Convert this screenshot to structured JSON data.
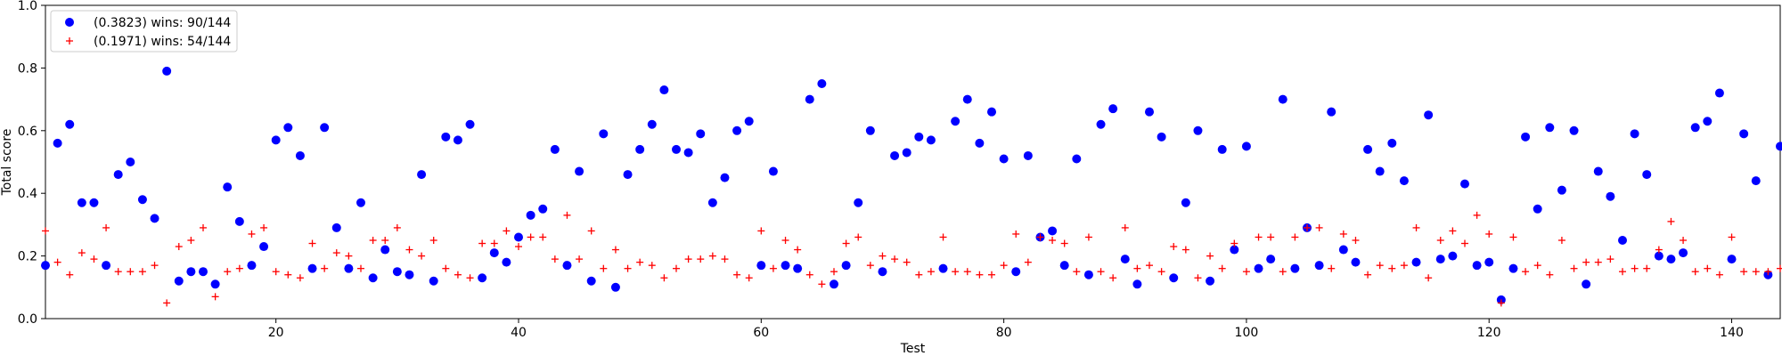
{
  "chart_data": {
    "type": "scatter",
    "xlabel": "Test",
    "ylabel": "Total score",
    "xlim": [
      1,
      144
    ],
    "ylim": [
      0.0,
      1.0
    ],
    "x_ticks": [
      20,
      40,
      60,
      80,
      100,
      120,
      140
    ],
    "y_ticks": [
      "0.0",
      "0.2",
      "0.4",
      "0.6",
      "0.8",
      "1.0"
    ],
    "grid": false,
    "legend_position": "top-left",
    "series": [
      {
        "name": "(0.3823) wins: 90/144",
        "marker": "circle",
        "color": "#0000ff",
        "x": [
          1,
          2,
          3,
          4,
          5,
          6,
          7,
          8,
          9,
          10,
          11,
          12,
          13,
          14,
          15,
          16,
          17,
          18,
          19,
          20,
          21,
          22,
          23,
          24,
          25,
          26,
          27,
          28,
          29,
          30,
          31,
          32,
          33,
          34,
          35,
          36,
          37,
          38,
          39,
          40,
          41,
          42,
          43,
          44,
          45,
          46,
          47,
          48,
          49,
          50,
          51,
          52,
          53,
          54,
          55,
          56,
          57,
          58,
          59,
          60,
          61,
          62,
          63,
          64,
          65,
          66,
          67,
          68,
          69,
          70,
          71,
          72,
          73,
          74,
          75,
          76,
          77,
          78,
          79,
          80,
          81,
          82,
          83,
          84,
          85,
          86,
          87,
          88,
          89,
          90,
          91,
          92,
          93,
          94,
          95,
          96,
          97,
          98,
          99,
          100,
          101,
          102,
          103,
          104,
          105,
          106,
          107,
          108,
          109,
          110,
          111,
          112,
          113,
          114,
          115,
          116,
          117,
          118,
          119,
          120,
          121,
          122,
          123,
          124,
          125,
          126,
          127,
          128,
          129,
          130,
          131,
          132,
          133,
          134,
          135,
          136,
          137,
          138,
          139,
          140,
          141,
          142,
          143,
          144
        ],
        "y": [
          0.17,
          0.56,
          0.62,
          0.37,
          0.37,
          0.17,
          0.46,
          0.5,
          0.38,
          0.32,
          0.79,
          0.12,
          0.15,
          0.15,
          0.11,
          0.42,
          0.31,
          0.17,
          0.23,
          0.57,
          0.61,
          0.52,
          0.16,
          0.61,
          0.29,
          0.16,
          0.37,
          0.13,
          0.22,
          0.15,
          0.14,
          0.46,
          0.12,
          0.58,
          0.57,
          0.62,
          0.13,
          0.21,
          0.18,
          0.26,
          0.33,
          0.35,
          0.54,
          0.17,
          0.47,
          0.12,
          0.59,
          0.1,
          0.46,
          0.54,
          0.62,
          0.73,
          0.54,
          0.53,
          0.59,
          0.37,
          0.45,
          0.6,
          0.63,
          0.17,
          0.47,
          0.17,
          0.16,
          0.7,
          0.75,
          0.11,
          0.17,
          0.37,
          0.6,
          0.15,
          0.52,
          0.53,
          0.58,
          0.57,
          0.16,
          0.63,
          0.7,
          0.56,
          0.66,
          0.51,
          0.15,
          0.52,
          0.26,
          0.28,
          0.17,
          0.51,
          0.14,
          0.62,
          0.67,
          0.19,
          0.11,
          0.66,
          0.58,
          0.13,
          0.37,
          0.6,
          0.12,
          0.54,
          0.22,
          0.55,
          0.16,
          0.19,
          0.7,
          0.16,
          0.29,
          0.17,
          0.66,
          0.22,
          0.18,
          0.54,
          0.47,
          0.56,
          0.44,
          0.18,
          0.65,
          0.19,
          0.2,
          0.43,
          0.17,
          0.18,
          0.06,
          0.16,
          0.58,
          0.35,
          0.61,
          0.41,
          0.6,
          0.11,
          0.47,
          0.39,
          0.25,
          0.59,
          0.46,
          0.2,
          0.19,
          0.21,
          0.61,
          0.63,
          0.72,
          0.19,
          0.59,
          0.44,
          0.14,
          0.55
        ]
      },
      {
        "name": "(0.1971) wins: 54/144",
        "marker": "plus",
        "color": "#ff0000",
        "x": [
          1,
          2,
          3,
          4,
          5,
          6,
          7,
          8,
          9,
          10,
          11,
          12,
          13,
          14,
          15,
          16,
          17,
          18,
          19,
          20,
          21,
          22,
          23,
          24,
          25,
          26,
          27,
          28,
          29,
          30,
          31,
          32,
          33,
          34,
          35,
          36,
          37,
          38,
          39,
          40,
          41,
          42,
          43,
          44,
          45,
          46,
          47,
          48,
          49,
          50,
          51,
          52,
          53,
          54,
          55,
          56,
          57,
          58,
          59,
          60,
          61,
          62,
          63,
          64,
          65,
          66,
          67,
          68,
          69,
          70,
          71,
          72,
          73,
          74,
          75,
          76,
          77,
          78,
          79,
          80,
          81,
          82,
          83,
          84,
          85,
          86,
          87,
          88,
          89,
          90,
          91,
          92,
          93,
          94,
          95,
          96,
          97,
          98,
          99,
          100,
          101,
          102,
          103,
          104,
          105,
          106,
          107,
          108,
          109,
          110,
          111,
          112,
          113,
          114,
          115,
          116,
          117,
          118,
          119,
          120,
          121,
          122,
          123,
          124,
          125,
          126,
          127,
          128,
          129,
          130,
          131,
          132,
          133,
          134,
          135,
          136,
          137,
          138,
          139,
          140,
          141,
          142,
          143,
          144
        ],
        "y": [
          0.28,
          0.18,
          0.14,
          0.21,
          0.19,
          0.29,
          0.15,
          0.15,
          0.15,
          0.17,
          0.05,
          0.23,
          0.25,
          0.29,
          0.07,
          0.15,
          0.16,
          0.27,
          0.29,
          0.15,
          0.14,
          0.13,
          0.24,
          0.16,
          0.21,
          0.2,
          0.16,
          0.25,
          0.25,
          0.29,
          0.22,
          0.2,
          0.25,
          0.16,
          0.14,
          0.13,
          0.24,
          0.24,
          0.28,
          0.23,
          0.26,
          0.26,
          0.19,
          0.33,
          0.19,
          0.28,
          0.16,
          0.22,
          0.16,
          0.18,
          0.17,
          0.13,
          0.16,
          0.19,
          0.19,
          0.2,
          0.19,
          0.14,
          0.13,
          0.28,
          0.16,
          0.25,
          0.22,
          0.14,
          0.11,
          0.15,
          0.24,
          0.26,
          0.17,
          0.2,
          0.19,
          0.18,
          0.14,
          0.15,
          0.26,
          0.15,
          0.15,
          0.14,
          0.14,
          0.17,
          0.27,
          0.18,
          0.26,
          0.25,
          0.24,
          0.15,
          0.26,
          0.15,
          0.13,
          0.29,
          0.16,
          0.17,
          0.15,
          0.23,
          0.22,
          0.13,
          0.2,
          0.16,
          0.24,
          0.15,
          0.26,
          0.26,
          0.15,
          0.26,
          0.29,
          0.29,
          0.16,
          0.27,
          0.25,
          0.14,
          0.17,
          0.16,
          0.17,
          0.29,
          0.13,
          0.25,
          0.28,
          0.24,
          0.33,
          0.27,
          0.05,
          0.26,
          0.15,
          0.17,
          0.14,
          0.25,
          0.16,
          0.18,
          0.18,
          0.19,
          0.15,
          0.16,
          0.16,
          0.22,
          0.31,
          0.25,
          0.15,
          0.16,
          0.14,
          0.26,
          0.15,
          0.15,
          0.15,
          0.16
        ]
      }
    ]
  }
}
